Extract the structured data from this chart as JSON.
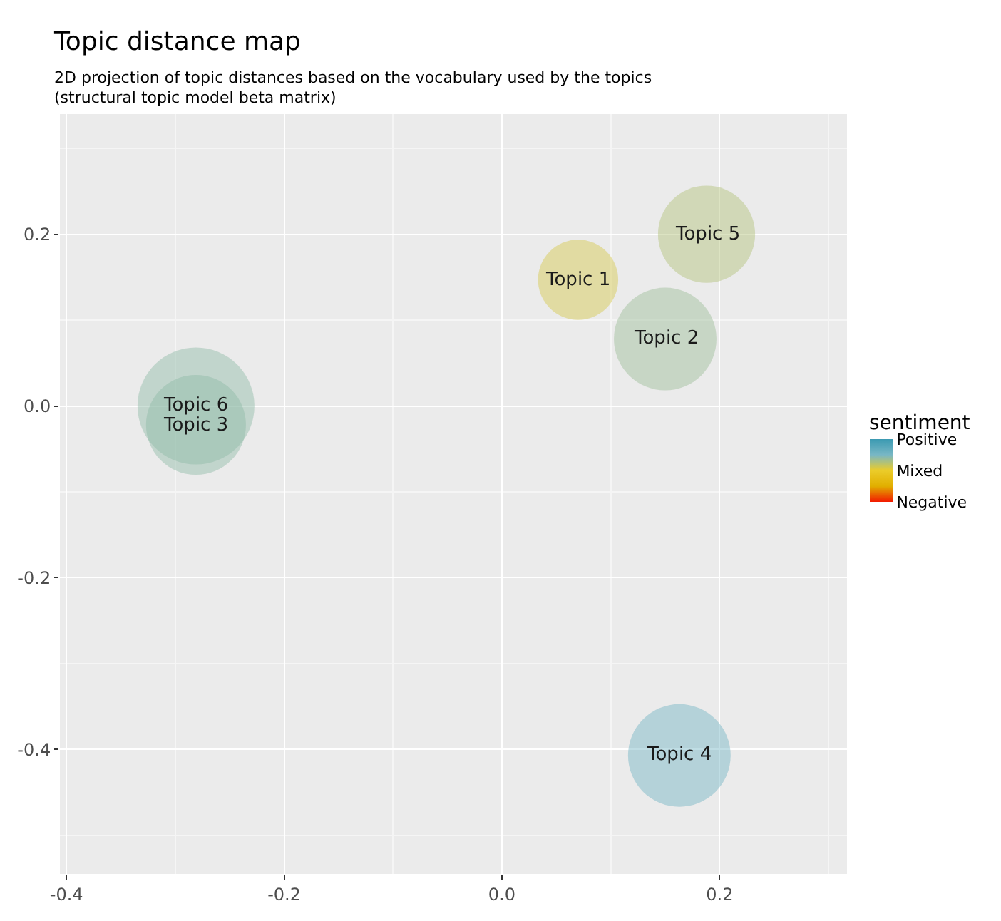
{
  "chart_data": {
    "type": "bubble",
    "title": "Topic distance map",
    "subtitle": "2D projection of topic distances based on the vocabulary used by the topics\n(structural topic model beta matrix)",
    "x": [
      0.07,
      0.15,
      -0.281,
      0.163,
      0.188,
      -0.281
    ],
    "values": [
      0.147,
      0.078,
      -0.022,
      -0.407,
      0.2,
      0.0
    ],
    "sizes": [
      0.47,
      0.77,
      0.73,
      0.77,
      0.69,
      1
    ],
    "cvalues": [
      0.1,
      0.35,
      0.4,
      0.55,
      0.25,
      0.4
    ],
    "annotations": [
      {
        "text": "Topic 1",
        "x": 0.07,
        "y": 0.147
      },
      {
        "text": "Topic 2",
        "x": 0.15,
        "y": 0.078
      },
      {
        "text": "Topic 3",
        "x": -0.281,
        "y": -0.022
      },
      {
        "text": "Topic 4",
        "x": 0.163,
        "y": -0.407
      },
      {
        "text": "Topic 5",
        "x": 0.188,
        "y": 0.2
      },
      {
        "text": "Topic 6",
        "x": -0.281,
        "y": 0.0
      }
    ],
    "clabel": "sentiment",
    "clim": [
      -1,
      1
    ],
    "cticks": [
      {
        "value": 1,
        "label": "Positive"
      },
      {
        "value": 0,
        "label": "Mixed"
      },
      {
        "value": -1,
        "label": "Negative"
      }
    ],
    "xlim": [
      -0.406,
      0.317
    ],
    "xticks": [
      {
        "value": -0.4,
        "label": "-0.4"
      },
      {
        "value": -0.2,
        "label": "-0.2"
      },
      {
        "value": 0,
        "label": "0.0"
      },
      {
        "value": 0.2,
        "label": "0.2"
      }
    ],
    "ylim": [
      -0.545,
      0.34
    ],
    "yticks": [
      {
        "value": -0.4,
        "label": "-0.4"
      },
      {
        "value": -0.2,
        "label": "-0.2"
      },
      {
        "value": 0,
        "label": "0.0"
      },
      {
        "value": 0.2,
        "label": "0.2"
      }
    ],
    "grid": true,
    "legend": false,
    "marker": "circle"
  }
}
